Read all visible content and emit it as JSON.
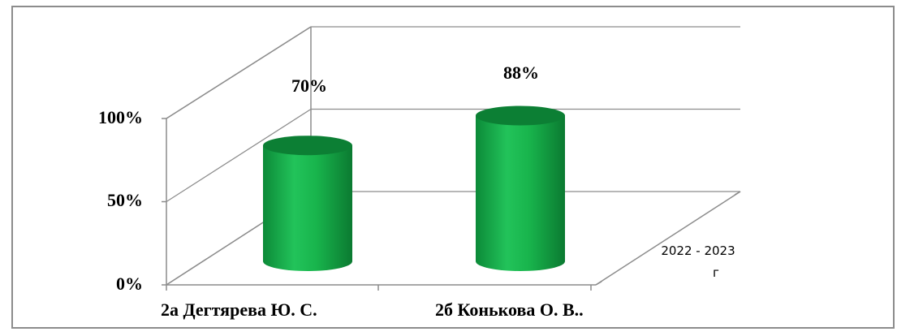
{
  "chart_data": {
    "type": "bar",
    "style": "3d-cylinder",
    "categories": [
      "2а Дегтярева Ю. С.",
      "2б Конькова О. В.."
    ],
    "series": [
      {
        "name": "2022 - 2023 г",
        "values": [
          70,
          88
        ]
      }
    ],
    "data_labels": [
      "70%",
      "88%"
    ],
    "y_ticks": [
      "0%",
      "50%",
      "100%"
    ],
    "ylim": [
      0,
      100
    ],
    "grid": true,
    "legend": "none",
    "colors": {
      "bar": "#16b24a",
      "bar_dark": "#0c7f34",
      "bar_light": "#27c45e",
      "axis": "#8c8c8c"
    }
  }
}
